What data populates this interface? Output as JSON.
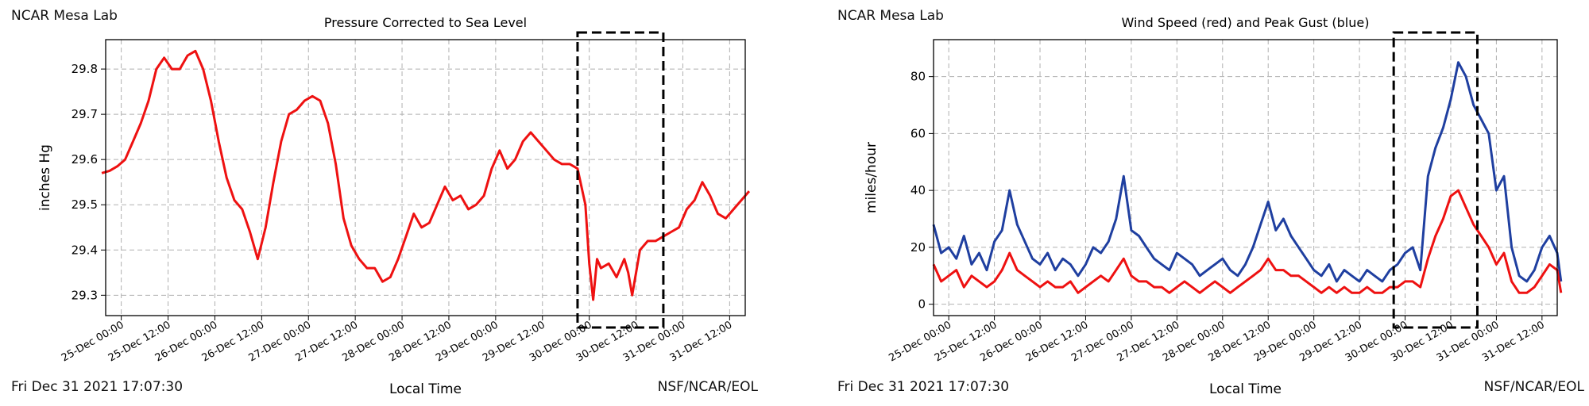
{
  "colors": {
    "pressure": "#ee1111",
    "wind": "#ee1111",
    "gust": "#1f3fa0",
    "grid": "#b0b0b0",
    "highlight": "#000000"
  },
  "panels": [
    {
      "station": "NCAR Mesa Lab",
      "timestamp": "Fri Dec 31 2021 17:07:30",
      "credit": "NSF/NCAR/EOL"
    },
    {
      "station": "NCAR Mesa Lab",
      "timestamp": "Fri Dec 31 2021 17:07:30",
      "credit": "NSF/NCAR/EOL"
    }
  ],
  "chart_data": [
    {
      "type": "line",
      "title": "Pressure Corrected to Sea Level",
      "xlabel": "Local Time",
      "ylabel": "inches Hg",
      "xlim_hours": [
        -4,
        160
      ],
      "ylim": [
        29.255,
        29.865
      ],
      "yticks": [
        29.3,
        29.4,
        29.5,
        29.6,
        29.7,
        29.8
      ],
      "xticks": [
        "25-Dec 00:00",
        "25-Dec 12:00",
        "26-Dec 00:00",
        "26-Dec 12:00",
        "27-Dec 00:00",
        "27-Dec 12:00",
        "28-Dec 00:00",
        "28-Dec 12:00",
        "29-Dec 00:00",
        "29-Dec 12:00",
        "30-Dec 00:00",
        "30-Dec 12:00",
        "31-Dec 00:00",
        "31-Dec 12:00"
      ],
      "grid": true,
      "highlight_box": {
        "x_start": "29-Dec 21:00",
        "x_end": "30-Dec 19:00"
      },
      "series": [
        {
          "x": [
            "24-Dec 19:00",
            "24-Dec 21:00",
            "24-Dec 23:00",
            "25-Dec 01:00",
            "25-Dec 03:00",
            "25-Dec 05:00",
            "25-Dec 07:00",
            "25-Dec 09:00",
            "25-Dec 11:00",
            "25-Dec 13:00",
            "25-Dec 15:00",
            "25-Dec 17:00",
            "25-Dec 19:00",
            "25-Dec 21:00",
            "25-Dec 23:00",
            "26-Dec 01:00",
            "26-Dec 03:00",
            "26-Dec 05:00",
            "26-Dec 07:00",
            "26-Dec 09:00",
            "26-Dec 11:00",
            "26-Dec 13:00",
            "26-Dec 15:00",
            "26-Dec 17:00",
            "26-Dec 19:00",
            "26-Dec 21:00",
            "26-Dec 23:00",
            "27-Dec 01:00",
            "27-Dec 03:00",
            "27-Dec 05:00",
            "27-Dec 07:00",
            "27-Dec 09:00",
            "27-Dec 11:00",
            "27-Dec 13:00",
            "27-Dec 15:00",
            "27-Dec 17:00",
            "27-Dec 19:00",
            "27-Dec 21:00",
            "27-Dec 23:00",
            "28-Dec 01:00",
            "28-Dec 03:00",
            "28-Dec 05:00",
            "28-Dec 07:00",
            "28-Dec 09:00",
            "28-Dec 11:00",
            "28-Dec 13:00",
            "28-Dec 15:00",
            "28-Dec 17:00",
            "28-Dec 19:00",
            "28-Dec 21:00",
            "28-Dec 23:00",
            "29-Dec 01:00",
            "29-Dec 03:00",
            "29-Dec 05:00",
            "29-Dec 07:00",
            "29-Dec 09:00",
            "29-Dec 11:00",
            "29-Dec 13:00",
            "29-Dec 15:00",
            "29-Dec 17:00",
            "29-Dec 19:00",
            "29-Dec 21:00",
            "29-Dec 23:00",
            "30-Dec 00:00",
            "30-Dec 01:00",
            "30-Dec 02:00",
            "30-Dec 03:00",
            "30-Dec 05:00",
            "30-Dec 07:00",
            "30-Dec 09:00",
            "30-Dec 10:00",
            "30-Dec 11:00",
            "30-Dec 13:00",
            "30-Dec 15:00",
            "30-Dec 17:00",
            "30-Dec 19:00",
            "30-Dec 21:00",
            "30-Dec 23:00",
            "31-Dec 01:00",
            "31-Dec 03:00",
            "31-Dec 05:00",
            "31-Dec 07:00",
            "31-Dec 09:00",
            "31-Dec 11:00",
            "31-Dec 13:00",
            "31-Dec 15:00",
            "31-Dec 17:00"
          ],
          "y": [
            29.57,
            29.575,
            29.585,
            29.6,
            29.64,
            29.68,
            29.73,
            29.8,
            29.825,
            29.8,
            29.8,
            29.83,
            29.84,
            29.8,
            29.73,
            29.64,
            29.56,
            29.51,
            29.49,
            29.44,
            29.38,
            29.45,
            29.55,
            29.64,
            29.7,
            29.71,
            29.73,
            29.74,
            29.73,
            29.68,
            29.59,
            29.47,
            29.41,
            29.38,
            29.36,
            29.36,
            29.33,
            29.34,
            29.38,
            29.43,
            29.48,
            29.45,
            29.46,
            29.5,
            29.54,
            29.51,
            29.52,
            29.49,
            29.5,
            29.52,
            29.58,
            29.62,
            29.58,
            29.6,
            29.64,
            29.66,
            29.64,
            29.62,
            29.6,
            29.59,
            29.59,
            29.58,
            29.5,
            29.37,
            29.29,
            29.38,
            29.36,
            29.37,
            29.34,
            29.38,
            29.35,
            29.3,
            29.4,
            29.42,
            29.42,
            29.43,
            29.44,
            29.45,
            29.49,
            29.51,
            29.55,
            29.52,
            29.48,
            29.47,
            29.49,
            29.51,
            29.53
          ]
        }
      ]
    },
    {
      "type": "line",
      "title": "Wind Speed (red) and Peak Gust (blue)",
      "xlabel": "Local Time",
      "ylabel": "miles/hour",
      "xlim_hours": [
        -4,
        160
      ],
      "ylim": [
        -4,
        93
      ],
      "yticks": [
        0,
        20,
        40,
        60,
        80
      ],
      "xticks": [
        "25-Dec 00:00",
        "25-Dec 12:00",
        "26-Dec 00:00",
        "26-Dec 12:00",
        "27-Dec 00:00",
        "27-Dec 12:00",
        "28-Dec 00:00",
        "28-Dec 12:00",
        "29-Dec 00:00",
        "29-Dec 12:00",
        "30-Dec 00:00",
        "30-Dec 12:00",
        "31-Dec 00:00",
        "31-Dec 12:00"
      ],
      "grid": true,
      "highlight_box": {
        "x_start": "29-Dec 21:00",
        "x_end": "30-Dec 19:00"
      },
      "series": [
        {
          "x": [
            "24-Dec 20:00",
            "24-Dec 22:00",
            "25-Dec 00:00",
            "25-Dec 02:00",
            "25-Dec 04:00",
            "25-Dec 06:00",
            "25-Dec 08:00",
            "25-Dec 10:00",
            "25-Dec 12:00",
            "25-Dec 14:00",
            "25-Dec 16:00",
            "25-Dec 18:00",
            "25-Dec 20:00",
            "25-Dec 22:00",
            "26-Dec 00:00",
            "26-Dec 02:00",
            "26-Dec 04:00",
            "26-Dec 06:00",
            "26-Dec 08:00",
            "26-Dec 10:00",
            "26-Dec 12:00",
            "26-Dec 14:00",
            "26-Dec 16:00",
            "26-Dec 18:00",
            "26-Dec 20:00",
            "26-Dec 22:00",
            "27-Dec 00:00",
            "27-Dec 02:00",
            "27-Dec 04:00",
            "27-Dec 06:00",
            "27-Dec 08:00",
            "27-Dec 10:00",
            "27-Dec 12:00",
            "27-Dec 14:00",
            "27-Dec 16:00",
            "27-Dec 18:00",
            "27-Dec 20:00",
            "27-Dec 22:00",
            "28-Dec 00:00",
            "28-Dec 02:00",
            "28-Dec 04:00",
            "28-Dec 06:00",
            "28-Dec 08:00",
            "28-Dec 10:00",
            "28-Dec 12:00",
            "28-Dec 14:00",
            "28-Dec 16:00",
            "28-Dec 18:00",
            "28-Dec 20:00",
            "28-Dec 22:00",
            "29-Dec 00:00",
            "29-Dec 02:00",
            "29-Dec 04:00",
            "29-Dec 06:00",
            "29-Dec 08:00",
            "29-Dec 10:00",
            "29-Dec 12:00",
            "29-Dec 14:00",
            "29-Dec 16:00",
            "29-Dec 18:00",
            "29-Dec 20:00",
            "29-Dec 22:00",
            "30-Dec 00:00",
            "30-Dec 02:00",
            "30-Dec 04:00",
            "30-Dec 06:00",
            "30-Dec 08:00",
            "30-Dec 10:00",
            "30-Dec 12:00",
            "30-Dec 14:00",
            "30-Dec 16:00",
            "30-Dec 18:00",
            "30-Dec 20:00",
            "30-Dec 22:00",
            "31-Dec 00:00",
            "31-Dec 02:00",
            "31-Dec 04:00",
            "31-Dec 06:00",
            "31-Dec 08:00",
            "31-Dec 10:00",
            "31-Dec 12:00",
            "31-Dec 14:00",
            "31-Dec 16:00",
            "31-Dec 17:00"
          ],
          "name": "Peak Gust",
          "values": [
            28,
            18,
            20,
            16,
            24,
            14,
            18,
            12,
            22,
            26,
            40,
            28,
            22,
            16,
            14,
            18,
            12,
            16,
            14,
            10,
            14,
            20,
            18,
            22,
            30,
            45,
            26,
            24,
            20,
            16,
            14,
            12,
            18,
            16,
            14,
            10,
            12,
            14,
            16,
            12,
            10,
            14,
            20,
            28,
            36,
            26,
            30,
            24,
            20,
            16,
            12,
            10,
            14,
            8,
            12,
            10,
            8,
            12,
            10,
            8,
            12,
            14,
            18,
            20,
            12,
            45,
            55,
            62,
            72,
            85,
            80,
            70,
            65,
            60,
            40,
            45,
            20,
            10,
            8,
            12,
            20,
            24,
            18,
            8
          ]
        },
        {
          "name": "Wind Speed",
          "values": [
            14,
            8,
            10,
            12,
            6,
            10,
            8,
            6,
            8,
            12,
            18,
            12,
            10,
            8,
            6,
            8,
            6,
            6,
            8,
            4,
            6,
            8,
            10,
            8,
            12,
            16,
            10,
            8,
            8,
            6,
            6,
            4,
            6,
            8,
            6,
            4,
            6,
            8,
            6,
            4,
            6,
            8,
            10,
            12,
            16,
            12,
            12,
            10,
            10,
            8,
            6,
            4,
            6,
            4,
            6,
            4,
            4,
            6,
            4,
            4,
            6,
            6,
            8,
            8,
            6,
            16,
            24,
            30,
            38,
            40,
            34,
            28,
            24,
            20,
            14,
            18,
            8,
            4,
            4,
            6,
            10,
            14,
            12,
            4
          ]
        }
      ]
    }
  ]
}
